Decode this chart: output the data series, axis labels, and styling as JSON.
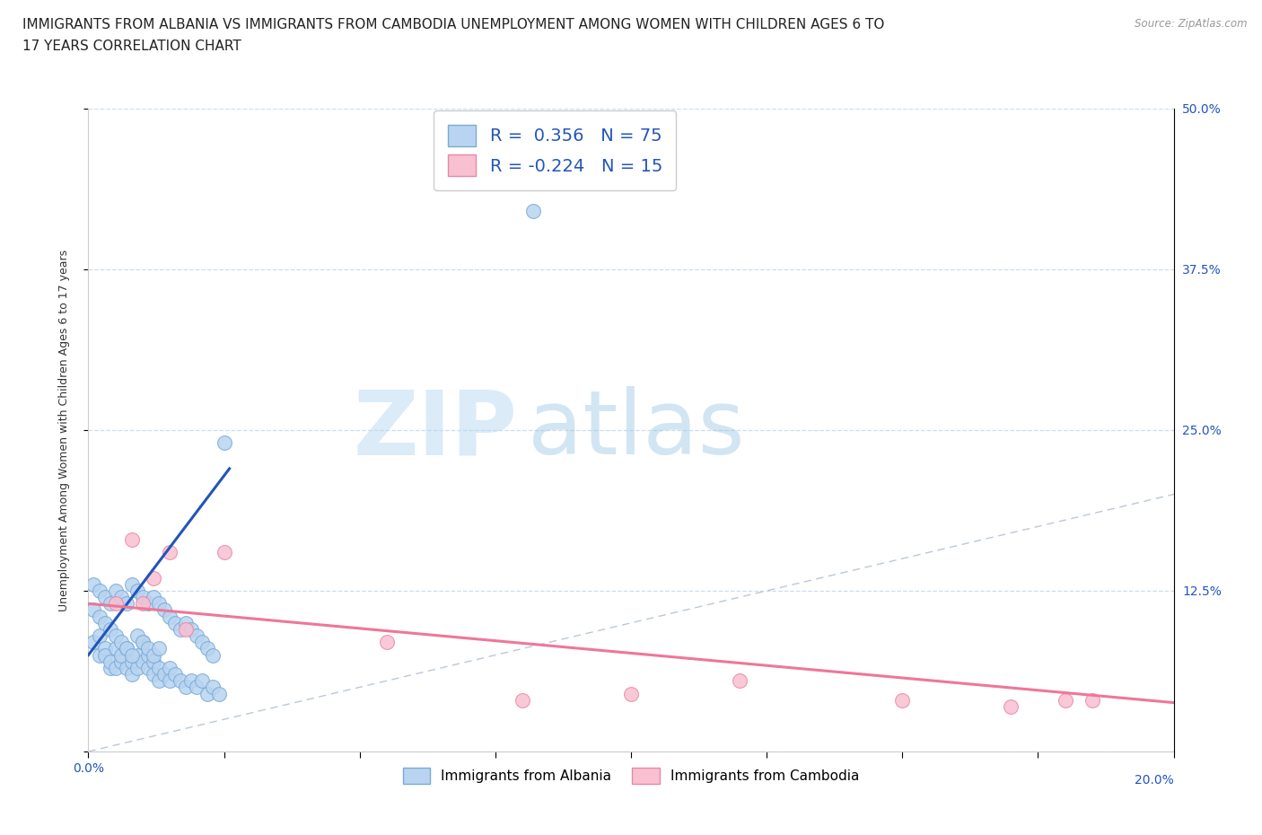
{
  "title_line1": "IMMIGRANTS FROM ALBANIA VS IMMIGRANTS FROM CAMBODIA UNEMPLOYMENT AMONG WOMEN WITH CHILDREN AGES 6 TO",
  "title_line2": "17 YEARS CORRELATION CHART",
  "source": "Source: ZipAtlas.com",
  "ylabel": "Unemployment Among Women with Children Ages 6 to 17 years",
  "xlim": [
    0.0,
    0.2
  ],
  "ylim": [
    0.0,
    0.5
  ],
  "albania_color": "#b8d4f0",
  "albania_edge_color": "#7aaad8",
  "cambodia_color": "#f8c0d0",
  "cambodia_edge_color": "#e888a8",
  "albania_trend_color": "#2255bb",
  "cambodia_trend_color": "#ee7799",
  "diag_color": "#aabbcc",
  "R_albania": 0.356,
  "N_albania": 75,
  "R_cambodia": -0.224,
  "N_cambodia": 15,
  "bottom_legend1": "Immigrants from Albania",
  "bottom_legend2": "Immigrants from Cambodia",
  "watermark_zip": "ZIP",
  "watermark_atlas": "atlas",
  "background_color": "#ffffff",
  "grid_color": "#ccddee",
  "albania_x": [
    0.001,
    0.002,
    0.002,
    0.003,
    0.003,
    0.004,
    0.004,
    0.005,
    0.005,
    0.006,
    0.006,
    0.007,
    0.007,
    0.008,
    0.008,
    0.009,
    0.009,
    0.01,
    0.01,
    0.011,
    0.011,
    0.012,
    0.012,
    0.013,
    0.013,
    0.014,
    0.015,
    0.015,
    0.016,
    0.017,
    0.018,
    0.019,
    0.02,
    0.021,
    0.022,
    0.023,
    0.024,
    0.001,
    0.002,
    0.003,
    0.004,
    0.005,
    0.006,
    0.007,
    0.008,
    0.009,
    0.01,
    0.011,
    0.012,
    0.013,
    0.001,
    0.002,
    0.003,
    0.004,
    0.005,
    0.006,
    0.007,
    0.008,
    0.009,
    0.01,
    0.011,
    0.012,
    0.013,
    0.014,
    0.015,
    0.016,
    0.017,
    0.018,
    0.019,
    0.02,
    0.021,
    0.022,
    0.023,
    0.082,
    0.025
  ],
  "albania_y": [
    0.085,
    0.075,
    0.09,
    0.08,
    0.075,
    0.065,
    0.07,
    0.08,
    0.065,
    0.07,
    0.075,
    0.065,
    0.08,
    0.07,
    0.06,
    0.065,
    0.075,
    0.085,
    0.07,
    0.065,
    0.075,
    0.07,
    0.06,
    0.065,
    0.055,
    0.06,
    0.065,
    0.055,
    0.06,
    0.055,
    0.05,
    0.055,
    0.05,
    0.055,
    0.045,
    0.05,
    0.045,
    0.11,
    0.105,
    0.1,
    0.095,
    0.09,
    0.085,
    0.08,
    0.075,
    0.09,
    0.085,
    0.08,
    0.075,
    0.08,
    0.13,
    0.125,
    0.12,
    0.115,
    0.125,
    0.12,
    0.115,
    0.13,
    0.125,
    0.12,
    0.115,
    0.12,
    0.115,
    0.11,
    0.105,
    0.1,
    0.095,
    0.1,
    0.095,
    0.09,
    0.085,
    0.08,
    0.075,
    0.42,
    0.24
  ],
  "albania_trend_x": [
    0.0,
    0.026
  ],
  "albania_trend_y": [
    0.075,
    0.22
  ],
  "cambodia_x": [
    0.005,
    0.008,
    0.01,
    0.012,
    0.015,
    0.018,
    0.025,
    0.055,
    0.08,
    0.1,
    0.12,
    0.15,
    0.17,
    0.18,
    0.185
  ],
  "cambodia_y": [
    0.115,
    0.165,
    0.115,
    0.135,
    0.155,
    0.095,
    0.155,
    0.085,
    0.04,
    0.045,
    0.055,
    0.04,
    0.035,
    0.04,
    0.04
  ],
  "cambodia_trend_x": [
    0.0,
    0.2
  ],
  "cambodia_trend_y": [
    0.115,
    0.038
  ]
}
